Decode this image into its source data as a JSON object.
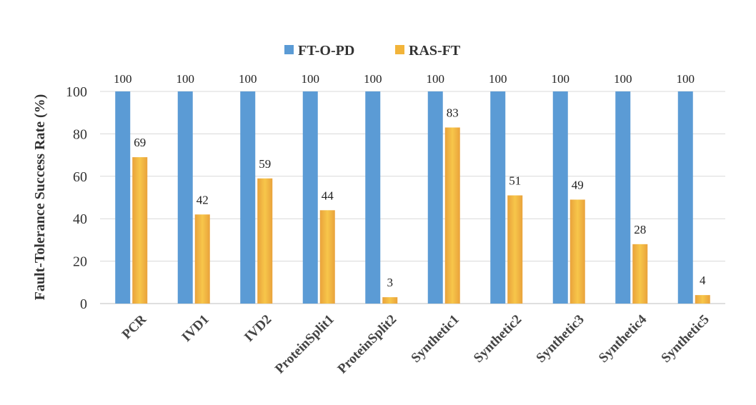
{
  "chart_data": {
    "type": "bar",
    "categories": [
      "PCR",
      "IVD1",
      "IVD2",
      "ProteinSplit1",
      "ProteinSplit2",
      "Synthetic1",
      "Synthetic2",
      "Synthetic3",
      "Synthetic4",
      "Synthetic5"
    ],
    "series": [
      {
        "name": "FT-O-PD",
        "color": "#5b9bd5",
        "values": [
          100,
          100,
          100,
          100,
          100,
          100,
          100,
          100,
          100,
          100
        ]
      },
      {
        "name": "RAS-FT",
        "color": "#f2b43a",
        "values": [
          69,
          42,
          59,
          44,
          3,
          83,
          51,
          49,
          28,
          4
        ]
      }
    ],
    "ylabel": "Fault-Tolerance Success Rate (%)",
    "ylim": [
      0,
      100
    ],
    "yticks": [
      0,
      20,
      40,
      60,
      80,
      100
    ],
    "grid": true,
    "legend": "top-center"
  }
}
